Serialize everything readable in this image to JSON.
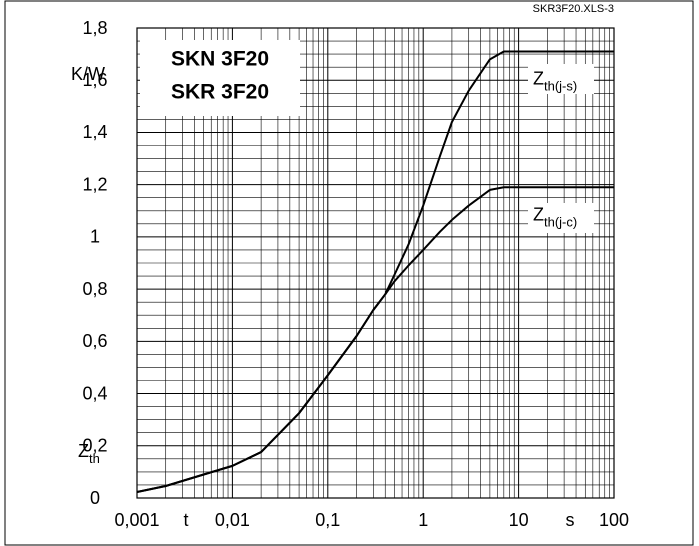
{
  "chart_data": {
    "type": "line",
    "title_lines": [
      "SKN 3F20",
      "SKR 3F20"
    ],
    "source": "SKR3F20.XLS-3",
    "y_unit": "K/W",
    "y_label": "Zth",
    "x_label": "t",
    "x_unit": "s",
    "x": [
      0.001,
      0.002,
      0.005,
      0.01,
      0.02,
      0.05,
      0.1,
      0.2,
      0.3,
      0.4,
      0.5,
      0.7,
      1,
      1.5,
      2,
      3,
      5,
      7,
      10,
      20,
      50,
      100
    ],
    "series": [
      {
        "name": "Zth(j-s)",
        "color": "#000000",
        "values": [
          0.023,
          0.046,
          0.09,
          0.123,
          0.176,
          0.325,
          0.47,
          0.62,
          0.72,
          0.78,
          0.855,
          0.97,
          1.12,
          1.31,
          1.44,
          1.56,
          1.68,
          1.71,
          1.71,
          1.71,
          1.71,
          1.71
        ]
      },
      {
        "name": "Zth(j-c)",
        "color": "#000000",
        "values": [
          0.023,
          0.046,
          0.09,
          0.123,
          0.176,
          0.325,
          0.47,
          0.62,
          0.72,
          0.78,
          0.83,
          0.89,
          0.95,
          1.02,
          1.065,
          1.12,
          1.18,
          1.19,
          1.19,
          1.19,
          1.19,
          1.19
        ]
      }
    ],
    "x_log": true,
    "xlim": [
      0.001,
      100
    ],
    "xticks": [
      {
        "value": 0.001,
        "label": "0,001"
      },
      {
        "value": 0.01,
        "label": "0,01"
      },
      {
        "value": 0.1,
        "label": "0,1"
      },
      1,
      10,
      100
    ],
    "ylim": [
      0,
      1.8
    ],
    "yticks": [
      0,
      {
        "value": 0.2,
        "label": "0,2"
      },
      {
        "value": 0.4,
        "label": "0,4"
      },
      {
        "value": 0.6,
        "label": "0,6"
      },
      {
        "value": 0.8,
        "label": "0,8"
      },
      1,
      {
        "value": 1.2,
        "label": "1,2"
      },
      {
        "value": 1.4,
        "label": "1,4"
      },
      {
        "value": 1.6,
        "label": "1,6"
      },
      {
        "value": 1.8,
        "label": "1,8"
      }
    ],
    "grid": true,
    "minor_grid": true
  }
}
